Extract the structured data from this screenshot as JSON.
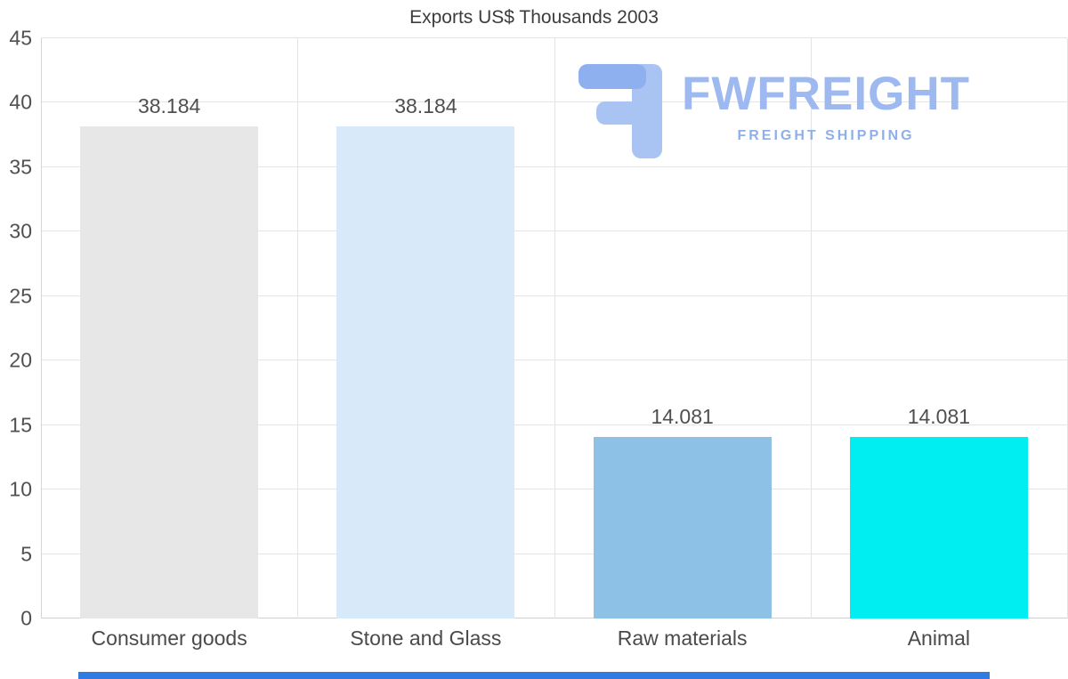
{
  "chart_data": {
    "type": "bar",
    "title": "Exports US$ Thousands 2003",
    "categories": [
      "Consumer goods",
      "Stone and Glass",
      "Raw materials",
      "Animal"
    ],
    "values": [
      38.184,
      38.184,
      14.081,
      14.081
    ],
    "value_labels": [
      "38.184",
      "38.184",
      "14.081",
      "14.081"
    ],
    "bar_colors": [
      "#e7e7e7",
      "#d8e9f9",
      "#8ec1e6",
      "#00eef2"
    ],
    "ylim": [
      0,
      45
    ],
    "yticks": [
      0,
      5,
      10,
      15,
      20,
      25,
      30,
      35,
      40,
      45
    ],
    "grid": true,
    "legend": "none",
    "xlabel": "",
    "ylabel": ""
  },
  "watermark": {
    "name": "FWFREIGHT",
    "subtitle": "FREIGHT SHIPPING",
    "logo_color": "#a9c4f2",
    "logo_accent_color": "#8fb0ee",
    "name_color": "#9db9ef",
    "subtitle_color": "#8fafea"
  },
  "footer": {
    "color": "#2f7be2"
  }
}
